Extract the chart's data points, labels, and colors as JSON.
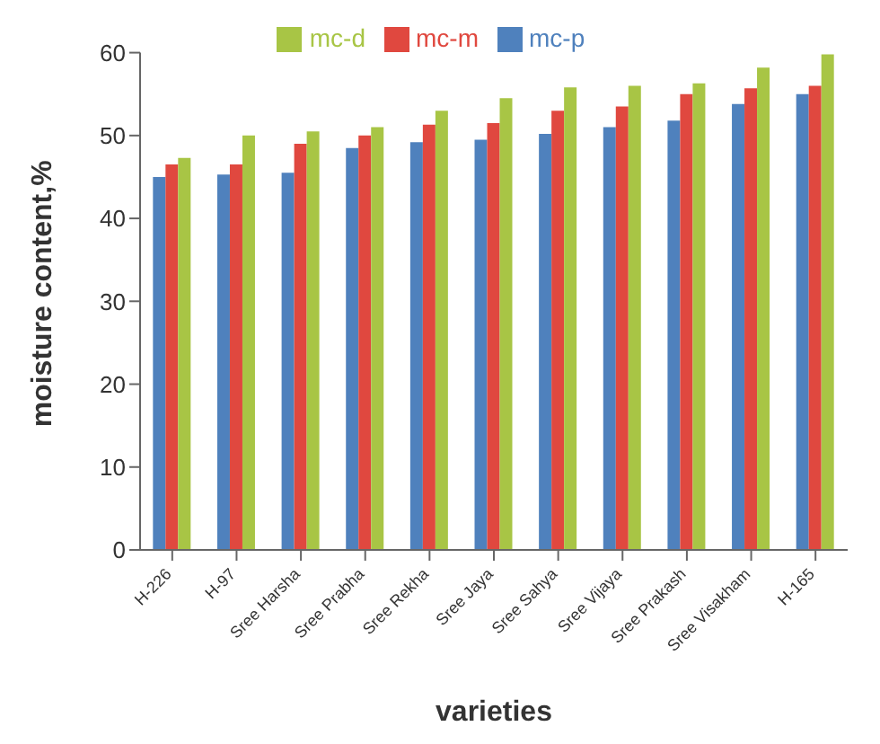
{
  "chart_data": {
    "type": "bar",
    "xlabel": "varieties",
    "ylabel": "moisture content,%",
    "categories": [
      "H-226",
      "H-97",
      "Sree Harsha",
      "Sree Prabha",
      "Sree Rekha",
      "Sree Jaya",
      "Sree Sahya",
      "Sree Vijaya",
      "Sree Prakash",
      "Sree Visakham",
      "H-165"
    ],
    "series": [
      {
        "name": "mc-p",
        "color": "#4f81bd",
        "values": [
          45,
          45.3,
          45.5,
          48.5,
          49.2,
          49.5,
          50.2,
          51,
          51.8,
          53.8,
          55
        ]
      },
      {
        "name": "mc-m",
        "color": "#e0483f",
        "values": [
          46.5,
          46.5,
          49,
          50,
          51.3,
          51.5,
          53,
          53.5,
          55,
          55.7,
          56
        ]
      },
      {
        "name": "mc-d",
        "color": "#a8c545",
        "values": [
          47.3,
          50,
          50.5,
          51,
          53,
          54.5,
          55.8,
          56,
          56.3,
          58.2,
          59.8
        ]
      }
    ],
    "ylim": [
      0,
      60
    ],
    "yticks": [
      0,
      10,
      20,
      30,
      40,
      50,
      60
    ],
    "grid": false,
    "legend": "top"
  }
}
